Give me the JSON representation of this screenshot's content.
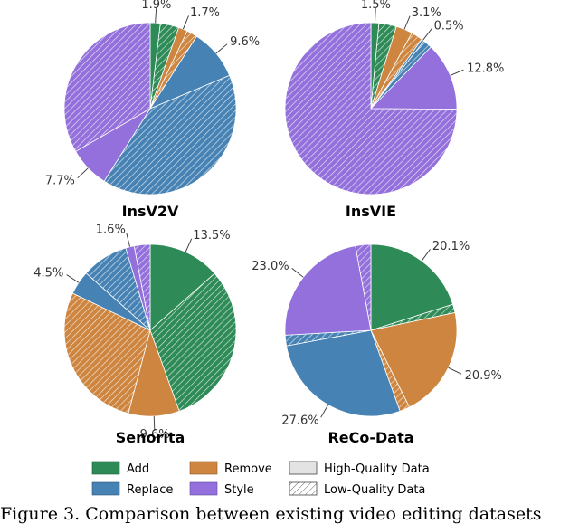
{
  "colors": {
    "Add": "#2e8b57",
    "Replace": "#4682b4",
    "Remove": "#cd853f",
    "Style": "#9370db"
  },
  "chart_data": [
    {
      "type": "pie",
      "title": "InsV2V",
      "categories": [
        "Add",
        "Add",
        "Remove",
        "Remove",
        "Replace",
        "Replace",
        "Style",
        "Style"
      ],
      "quality": [
        "high",
        "low",
        "high",
        "low",
        "high",
        "low",
        "high",
        "low"
      ],
      "values": [
        1.9,
        3.5,
        1.7,
        2.0,
        9.6,
        40.3,
        7.7,
        33.3
      ],
      "labels": [
        "1.9%",
        "",
        "1.7%",
        "",
        "9.6%",
        "",
        "7.7%",
        ""
      ]
    },
    {
      "type": "pie",
      "title": "InsVIE",
      "categories": [
        "Add",
        "Add",
        "Remove",
        "Remove",
        "Replace",
        "Replace",
        "Style",
        "Style"
      ],
      "quality": [
        "high",
        "low",
        "high",
        "low",
        "high",
        "low",
        "high",
        "low"
      ],
      "values": [
        1.5,
        3.3,
        3.1,
        2.2,
        0.5,
        1.7,
        12.8,
        74.9
      ],
      "labels": [
        "1.5%",
        "",
        "3.1%",
        "",
        "0.5%",
        "",
        "12.8%",
        ""
      ]
    },
    {
      "type": "pie",
      "title": "Senorita",
      "categories": [
        "Add",
        "Add",
        "Remove",
        "Remove",
        "Replace",
        "Replace",
        "Style",
        "Style"
      ],
      "quality": [
        "high",
        "low",
        "high",
        "low",
        "high",
        "low",
        "high",
        "low"
      ],
      "values": [
        13.5,
        31.0,
        9.6,
        28.0,
        4.5,
        8.8,
        1.6,
        3.0
      ],
      "labels": [
        "13.5%",
        "",
        "9.6%",
        "",
        "4.5%",
        "",
        "1.6%",
        ""
      ]
    },
    {
      "type": "pie",
      "title": "ReCo-Data",
      "categories": [
        "Add",
        "Add",
        "Remove",
        "Remove",
        "Replace",
        "Replace",
        "Style",
        "Style"
      ],
      "quality": [
        "high",
        "low",
        "high",
        "low",
        "high",
        "low",
        "high",
        "low"
      ],
      "values": [
        20.1,
        1.6,
        20.9,
        1.9,
        27.6,
        2.0,
        23.0,
        2.9
      ],
      "labels": [
        "20.1%",
        "",
        "20.9%",
        "",
        "27.6%",
        "",
        "23.0%",
        ""
      ]
    }
  ],
  "legend": {
    "categories": [
      "Add",
      "Replace",
      "Remove",
      "Style"
    ],
    "quality": [
      "High-Quality Data",
      "Low-Quality Data"
    ]
  },
  "caption": "Figure 3. Comparison between existing video editing datasets"
}
